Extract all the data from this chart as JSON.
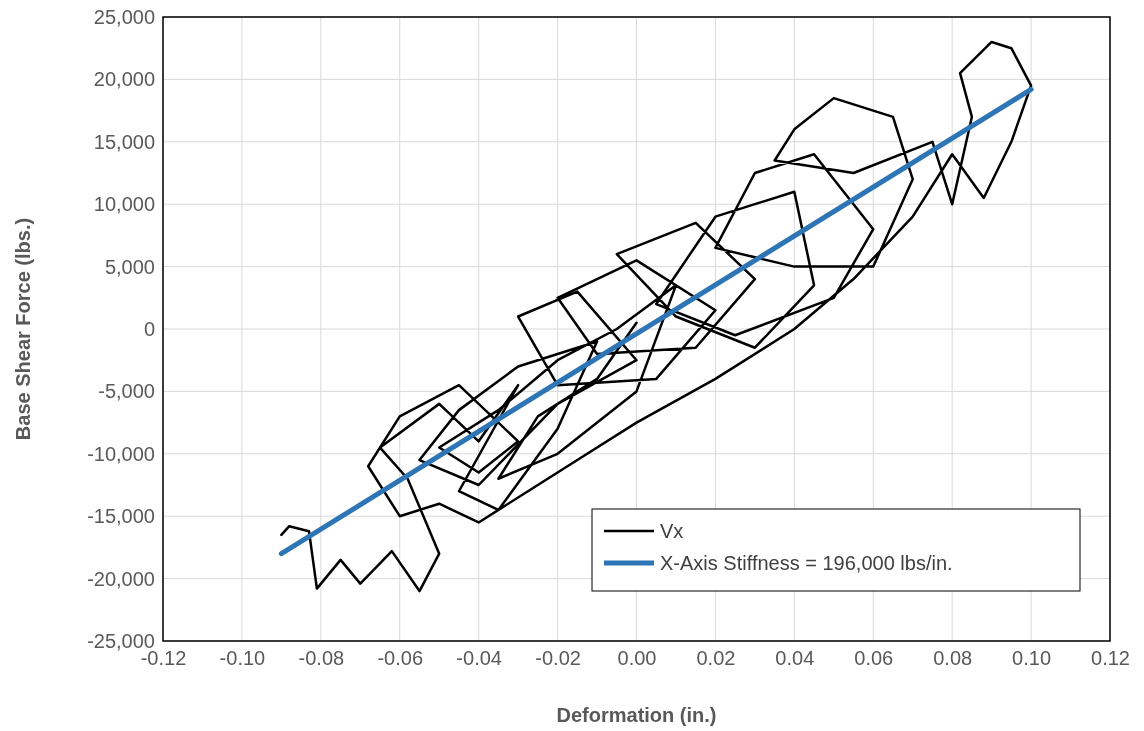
{
  "chart_data": {
    "type": "line",
    "xlabel": "Deformation (in.)",
    "ylabel": "Base Shear Force (lbs.)",
    "xlim": [
      -0.12,
      0.12
    ],
    "ylim": [
      -25000,
      25000
    ],
    "xticks": [
      {
        "value": -0.12,
        "label": "-0.12"
      },
      {
        "value": -0.1,
        "label": "-0.10"
      },
      {
        "value": -0.08,
        "label": "-0.08"
      },
      {
        "value": -0.06,
        "label": "-0.06"
      },
      {
        "value": -0.04,
        "label": "-0.04"
      },
      {
        "value": -0.02,
        "label": "-0.02"
      },
      {
        "value": 0,
        "label": "0.00"
      },
      {
        "value": 0.02,
        "label": "0.02"
      },
      {
        "value": 0.04,
        "label": "0.04"
      },
      {
        "value": 0.06,
        "label": "0.06"
      },
      {
        "value": 0.08,
        "label": "0.08"
      },
      {
        "value": 0.1,
        "label": "0.10"
      },
      {
        "value": 0.12,
        "label": "0.12"
      }
    ],
    "yticks": [
      {
        "value": -25000,
        "label": "-25,000"
      },
      {
        "value": -20000,
        "label": "-20,000"
      },
      {
        "value": -15000,
        "label": "-15,000"
      },
      {
        "value": -10000,
        "label": "-10,000"
      },
      {
        "value": -5000,
        "label": "-5,000"
      },
      {
        "value": 0,
        "label": "0"
      },
      {
        "value": 5000,
        "label": "5,000"
      },
      {
        "value": 10000,
        "label": "10,000"
      },
      {
        "value": 15000,
        "label": "15,000"
      },
      {
        "value": 20000,
        "label": "20,000"
      },
      {
        "value": 25000,
        "label": "25,000"
      }
    ],
    "grid": true,
    "legend": "bottom right",
    "marker": "none",
    "line_style": "solid",
    "series": [
      {
        "name": "Vx",
        "color": "#000000",
        "x": [
          -0.09,
          -0.088,
          -0.083,
          -0.081,
          -0.075,
          -0.07,
          -0.062,
          -0.055,
          -0.05,
          -0.058,
          -0.065,
          -0.05,
          -0.04,
          -0.03,
          -0.045,
          -0.035,
          -0.02,
          -0.01,
          -0.03,
          -0.045,
          -0.055,
          -0.04,
          -0.02,
          0.0,
          -0.015,
          -0.03,
          -0.02,
          0.005,
          0.02,
          0.0,
          -0.02,
          -0.01,
          0.015,
          0.03,
          0.015,
          -0.005,
          0.01,
          0.03,
          0.045,
          0.04,
          0.02,
          0.005,
          0.025,
          0.05,
          0.06,
          0.045,
          0.03,
          0.02,
          0.04,
          0.06,
          0.07,
          0.065,
          0.05,
          0.04,
          0.035,
          0.055,
          0.075,
          0.08,
          0.085,
          0.082,
          0.09,
          0.095,
          0.1,
          0.095,
          0.088,
          0.08,
          0.07,
          0.055,
          0.04,
          0.02,
          0.0,
          -0.015,
          -0.025,
          -0.04,
          -0.05,
          -0.06,
          -0.068,
          -0.06,
          -0.045,
          -0.03,
          -0.04,
          -0.05,
          -0.035,
          -0.02,
          -0.005,
          0.01,
          0.0,
          -0.02,
          -0.035,
          -0.025,
          -0.01,
          0.0
        ],
        "values": [
          -16500,
          -15800,
          -16200,
          -20800,
          -18500,
          -20400,
          -17800,
          -21000,
          -18000,
          -12000,
          -9500,
          -6000,
          -9000,
          -4500,
          -13000,
          -14500,
          -8000,
          -1000,
          -3000,
          -6500,
          -10500,
          -12500,
          -6000,
          -2500,
          3000,
          1000,
          -4500,
          -4000,
          1500,
          5500,
          2500,
          -2000,
          -1500,
          4000,
          8500,
          6000,
          1000,
          -1500,
          3500,
          11000,
          9000,
          2000,
          -500,
          2500,
          8000,
          14000,
          12500,
          6500,
          5000,
          5000,
          12000,
          17000,
          18500,
          16000,
          13500,
          12500,
          15000,
          10000,
          17000,
          20500,
          23000,
          22500,
          19500,
          15000,
          10500,
          14000,
          9000,
          4000,
          0,
          -4000,
          -7500,
          -10500,
          -12500,
          -15500,
          -14000,
          -15000,
          -11000,
          -7000,
          -4500,
          -9000,
          -11500,
          -9500,
          -6500,
          -2500,
          0,
          3500,
          -5000,
          -10000,
          -12000,
          -7000,
          -4000,
          500
        ]
      },
      {
        "name": "X-Axis Stiffness = 196,000 lbs/in.",
        "color": "#2e75b6",
        "x": [
          -0.09,
          0.1
        ],
        "values": [
          -18000,
          19200
        ]
      }
    ]
  }
}
